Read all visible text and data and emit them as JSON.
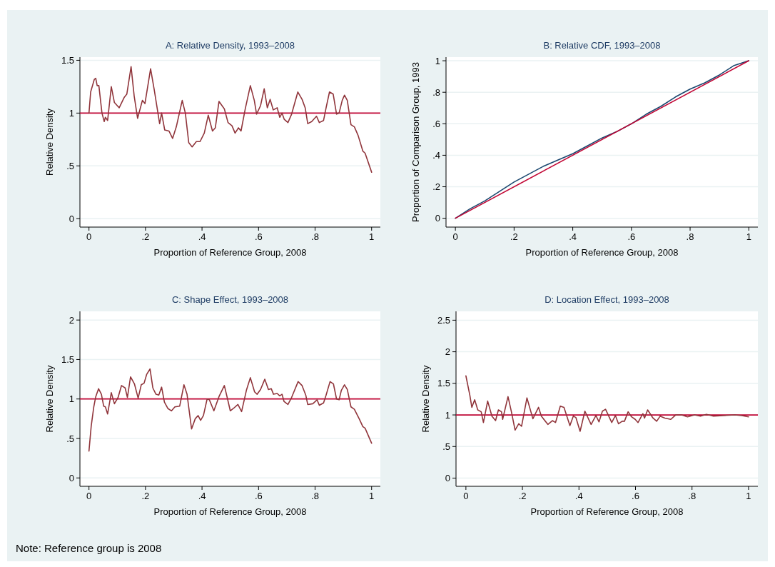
{
  "chart_data": [
    {
      "type": "line",
      "title": "A: Relative Density, 1993–2008",
      "xlabel": "Proportion of Reference Group, 2008",
      "ylabel": "Relative Density",
      "xlim": [
        -0.032,
        1.031
      ],
      "ylim": [
        -0.08,
        1.53
      ],
      "xticks": [
        {
          "value": 0,
          "label": "0"
        },
        {
          "value": 0.2,
          "label": ".2"
        },
        {
          "value": 0.4,
          "label": ".4"
        },
        {
          "value": 0.6,
          "label": ".6"
        },
        {
          "value": 0.8,
          "label": ".8"
        },
        {
          "value": 1,
          "label": "1"
        }
      ],
      "yticks": [
        0,
        {
          "value": 0.5,
          "label": ".5"
        },
        1,
        1.5
      ],
      "grid": "y",
      "ref_lines": [
        {
          "axis": "y",
          "value": 1,
          "color": "#c10534"
        }
      ],
      "series": [
        {
          "color": "#90353b",
          "x": [
            0,
            0.006,
            0.019,
            0.024,
            0.029,
            0.035,
            0.046,
            0.054,
            0.058,
            0.066,
            0.079,
            0.09,
            0.107,
            0.125,
            0.134,
            0.149,
            0.16,
            0.172,
            0.189,
            0.198,
            0.218,
            0.231,
            0.25,
            0.257,
            0.268,
            0.283,
            0.296,
            0.309,
            0.33,
            0.341,
            0.353,
            0.365,
            0.38,
            0.393,
            0.408,
            0.422,
            0.437,
            0.447,
            0.46,
            0.479,
            0.492,
            0.506,
            0.517,
            0.529,
            0.538,
            0.553,
            0.571,
            0.585,
            0.593,
            0.607,
            0.62,
            0.631,
            0.641,
            0.652,
            0.666,
            0.675,
            0.683,
            0.691,
            0.704,
            0.717,
            0.739,
            0.754,
            0.765,
            0.774,
            0.788,
            0.805,
            0.815,
            0.83,
            0.839,
            0.851,
            0.864,
            0.876,
            0.885,
            0.896,
            0.904,
            0.914,
            0.927,
            0.939,
            0.952,
            0.969,
            0.977,
            1
          ],
          "values": [
            1.0,
            1.2,
            1.32,
            1.33,
            1.26,
            1.26,
            1.0,
            0.92,
            0.96,
            0.93,
            1.25,
            1.1,
            1.05,
            1.15,
            1.18,
            1.44,
            1.16,
            0.95,
            1.12,
            1.09,
            1.42,
            1.22,
            0.9,
            1.0,
            0.84,
            0.83,
            0.76,
            0.87,
            1.12,
            1.0,
            0.72,
            0.68,
            0.73,
            0.73,
            0.81,
            0.98,
            0.83,
            0.86,
            1.11,
            1.04,
            0.91,
            0.88,
            0.81,
            0.86,
            0.83,
            1.04,
            1.26,
            1.12,
            0.99,
            1.07,
            1.23,
            1.05,
            1.13,
            1.03,
            1.05,
            0.96,
            1.0,
            0.94,
            0.91,
            0.99,
            1.2,
            1.13,
            1.05,
            0.9,
            0.92,
            0.97,
            0.91,
            0.93,
            1.05,
            1.2,
            1.18,
            0.99,
            1.0,
            1.12,
            1.17,
            1.12,
            0.89,
            0.87,
            0.79,
            0.64,
            0.62,
            0.44
          ]
        }
      ]
    },
    {
      "type": "line",
      "title": "B: Relative CDF, 1993–2008",
      "xlabel": "Proportion of Reference Group, 2008",
      "ylabel": "Proportion of Comparison Group, 1993",
      "xlim": [
        -0.032,
        1.031
      ],
      "ylim": [
        -0.056,
        1.023
      ],
      "xticks": [
        {
          "value": 0,
          "label": "0"
        },
        {
          "value": 0.2,
          "label": ".2"
        },
        {
          "value": 0.4,
          "label": ".4"
        },
        {
          "value": 0.6,
          "label": ".6"
        },
        {
          "value": 0.8,
          "label": ".8"
        },
        {
          "value": 1,
          "label": "1"
        }
      ],
      "yticks": [
        0,
        {
          "value": 0.2,
          "label": ".2"
        },
        {
          "value": 0.4,
          "label": ".4"
        },
        {
          "value": 0.6,
          "label": ".6"
        },
        {
          "value": 0.8,
          "label": ".8"
        },
        1
      ],
      "grid": "y",
      "series": [
        {
          "color": "#1a476f",
          "x": [
            0,
            0.05,
            0.1,
            0.15,
            0.2,
            0.25,
            0.3,
            0.35,
            0.4,
            0.45,
            0.5,
            0.55,
            0.6,
            0.65,
            0.7,
            0.75,
            0.8,
            0.85,
            0.9,
            0.95,
            1
          ],
          "values": [
            0,
            0.06,
            0.11,
            0.17,
            0.23,
            0.28,
            0.33,
            0.37,
            0.41,
            0.46,
            0.51,
            0.55,
            0.6,
            0.66,
            0.71,
            0.77,
            0.82,
            0.86,
            0.91,
            0.97,
            1
          ]
        },
        {
          "color": "#c10534",
          "x": [
            0,
            1
          ],
          "values": [
            0,
            1
          ]
        }
      ]
    },
    {
      "type": "line",
      "title": "C: Shape Effect, 1993–2008",
      "xlabel": "Proportion of Reference Group, 2008",
      "ylabel": "Relative Density",
      "xlim": [
        -0.032,
        1.031
      ],
      "ylim": [
        -0.106,
        2.11
      ],
      "xticks": [
        {
          "value": 0,
          "label": "0"
        },
        {
          "value": 0.2,
          "label": ".2"
        },
        {
          "value": 0.4,
          "label": ".4"
        },
        {
          "value": 0.6,
          "label": ".6"
        },
        {
          "value": 0.8,
          "label": ".8"
        },
        {
          "value": 1,
          "label": "1"
        }
      ],
      "yticks": [
        0,
        {
          "value": 0.5,
          "label": ".5"
        },
        1,
        1.5,
        2
      ],
      "grid": "y",
      "ref_lines": [
        {
          "axis": "y",
          "value": 1,
          "color": "#c10534"
        }
      ],
      "series": [
        {
          "color": "#90353b",
          "x": [
            0,
            0.008,
            0.017,
            0.024,
            0.034,
            0.044,
            0.052,
            0.058,
            0.066,
            0.079,
            0.09,
            0.103,
            0.115,
            0.128,
            0.136,
            0.147,
            0.161,
            0.174,
            0.185,
            0.195,
            0.204,
            0.216,
            0.226,
            0.237,
            0.247,
            0.257,
            0.267,
            0.279,
            0.292,
            0.304,
            0.321,
            0.336,
            0.347,
            0.363,
            0.376,
            0.386,
            0.395,
            0.405,
            0.418,
            0.426,
            0.442,
            0.46,
            0.479,
            0.489,
            0.5,
            0.511,
            0.527,
            0.54,
            0.557,
            0.571,
            0.586,
            0.595,
            0.607,
            0.622,
            0.635,
            0.645,
            0.653,
            0.666,
            0.675,
            0.683,
            0.69,
            0.704,
            0.717,
            0.74,
            0.754,
            0.767,
            0.774,
            0.792,
            0.807,
            0.815,
            0.83,
            0.839,
            0.853,
            0.865,
            0.876,
            0.885,
            0.893,
            0.904,
            0.914,
            0.927,
            0.939,
            0.956,
            0.969,
            0.977,
            1
          ],
          "values": [
            0.34,
            0.66,
            0.9,
            1.03,
            1.13,
            1.06,
            0.91,
            0.9,
            0.81,
            1.08,
            0.94,
            1.02,
            1.17,
            1.14,
            1.02,
            1.28,
            1.19,
            1.01,
            1.18,
            1.2,
            1.31,
            1.38,
            1.14,
            1.06,
            1.05,
            1.15,
            0.96,
            0.88,
            0.85,
            0.9,
            0.91,
            1.18,
            1.06,
            0.62,
            0.75,
            0.79,
            0.73,
            0.79,
            1.0,
            0.99,
            0.85,
            1.03,
            1.17,
            1.02,
            0.85,
            0.88,
            0.93,
            0.84,
            1.11,
            1.27,
            1.09,
            1.06,
            1.12,
            1.25,
            1.12,
            1.13,
            1.06,
            1.07,
            1.04,
            1.06,
            0.97,
            0.93,
            1.02,
            1.22,
            1.17,
            1.05,
            0.93,
            0.94,
            0.99,
            0.92,
            0.95,
            1.05,
            1.22,
            1.19,
            1.0,
            0.99,
            1.11,
            1.18,
            1.12,
            0.9,
            0.87,
            0.75,
            0.65,
            0.63,
            0.44
          ]
        }
      ]
    },
    {
      "type": "line",
      "title": "D: Location Effect, 1993–2008",
      "xlabel": "Proportion of Reference Group, 2008",
      "ylabel": "Relative Density",
      "xlim": [
        -0.035,
        1.033
      ],
      "ylim": [
        -0.13,
        2.64
      ],
      "xticks": [
        {
          "value": 0,
          "label": "0"
        },
        {
          "value": 0.2,
          "label": ".2"
        },
        {
          "value": 0.4,
          "label": ".4"
        },
        {
          "value": 0.6,
          "label": ".6"
        },
        {
          "value": 0.8,
          "label": ".8"
        },
        {
          "value": 1,
          "label": "1"
        }
      ],
      "yticks": [
        0,
        {
          "value": 0.5,
          "label": ".5"
        },
        1,
        1.5,
        2,
        2.5
      ],
      "grid": "y",
      "ref_lines": [
        {
          "axis": "y",
          "value": 1,
          "color": "#c10534"
        }
      ],
      "annotations": [
        "Note: Reference group is 2008"
      ],
      "series": [
        {
          "color": "#90353b",
          "x": [
            0,
            0.014,
            0.021,
            0.031,
            0.042,
            0.054,
            0.062,
            0.077,
            0.092,
            0.105,
            0.115,
            0.126,
            0.13,
            0.149,
            0.161,
            0.174,
            0.187,
            0.197,
            0.216,
            0.237,
            0.257,
            0.267,
            0.29,
            0.306,
            0.317,
            0.334,
            0.347,
            0.368,
            0.38,
            0.389,
            0.404,
            0.421,
            0.443,
            0.46,
            0.471,
            0.483,
            0.494,
            0.516,
            0.529,
            0.54,
            0.553,
            0.561,
            0.574,
            0.586,
            0.599,
            0.609,
            0.626,
            0.632,
            0.643,
            0.662,
            0.675,
            0.687,
            0.704,
            0.725,
            0.742,
            0.763,
            0.784,
            0.809,
            0.83,
            0.851,
            0.876,
            0.91,
            0.952,
            0.977,
            1
          ],
          "values": [
            1.62,
            1.31,
            1.12,
            1.24,
            1.08,
            1.05,
            0.88,
            1.22,
            0.98,
            0.91,
            1.08,
            1.05,
            0.93,
            1.29,
            1.05,
            0.76,
            0.86,
            0.82,
            1.27,
            0.94,
            1.12,
            0.98,
            0.85,
            0.91,
            0.88,
            1.14,
            1.12,
            0.83,
            0.98,
            0.96,
            0.74,
            1.06,
            0.85,
            0.99,
            0.89,
            1.06,
            1.09,
            0.88,
            0.99,
            0.86,
            0.9,
            0.9,
            1.05,
            0.97,
            0.93,
            0.88,
            1.02,
            0.95,
            1.08,
            0.95,
            0.9,
            0.98,
            0.95,
            0.93,
            1.0,
            1.0,
            0.97,
            1.0,
            0.98,
            1.01,
            0.98,
            0.99,
            1.0,
            0.99,
            0.97
          ]
        }
      ]
    }
  ]
}
